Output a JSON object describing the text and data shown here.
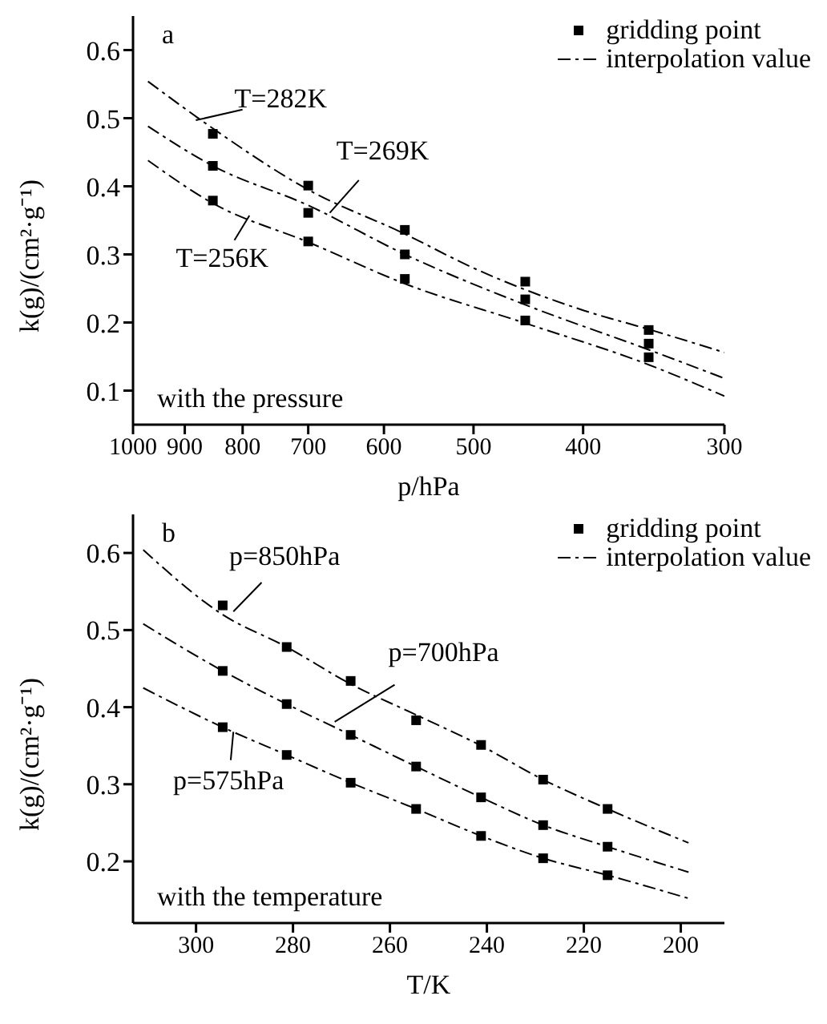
{
  "chart_data": [
    {
      "type": "line",
      "title": "a",
      "xlabel": "p/hPa",
      "ylabel": "k(g)/(cm²·g⁻¹)",
      "log": "x",
      "xlim": [
        1000,
        300
      ],
      "xticks": [
        1000,
        900,
        800,
        700,
        600,
        500,
        400,
        300
      ],
      "ylim": [
        0.05,
        0.65
      ],
      "yticks": [
        0.1,
        0.2,
        0.3,
        0.4,
        0.5,
        0.6
      ],
      "legend": "top right",
      "grid": false,
      "annotations": [
        {
          "text": "T=282K",
          "x": 880,
          "y": 0.497
        },
        {
          "text": "T=269K",
          "x": 670,
          "y": 0.361
        },
        {
          "text": "T=256K",
          "x": 789,
          "y": 0.357
        },
        "with the pressure"
      ],
      "series": [
        {
          "name": "gridding point",
          "type": "scatter",
          "marker": "square",
          "color": "#000000",
          "x": [
            850,
            850,
            850,
            700,
            700,
            700,
            575,
            575,
            575,
            450,
            450,
            450,
            350,
            350,
            350
          ],
          "values": [
            0.477,
            0.43,
            0.379,
            0.401,
            0.361,
            0.319,
            0.336,
            0.3,
            0.264,
            0.26,
            0.234,
            0.203,
            0.189,
            0.169,
            0.149
          ]
        },
        {
          "name": "interpolation value",
          "type": "line",
          "line_style": "dashed",
          "color": "#000000",
          "x": [
            970,
            850,
            700,
            575,
            500,
            400,
            350,
            300
          ],
          "values": [
            0.554,
            0.485,
            0.395,
            0.33,
            0.28,
            0.218,
            0.19,
            0.156
          ]
        },
        {
          "type": "line",
          "line_style": "dashed",
          "color": "#000000",
          "x": [
            970,
            850,
            700,
            575,
            450,
            350,
            300
          ],
          "values": [
            0.488,
            0.43,
            0.372,
            0.3,
            0.226,
            0.16,
            0.118
          ]
        },
        {
          "type": "line",
          "line_style": "dashed",
          "color": "#000000",
          "x": [
            970,
            850,
            700,
            575,
            450,
            350,
            300
          ],
          "values": [
            0.438,
            0.375,
            0.318,
            0.257,
            0.199,
            0.138,
            0.092
          ]
        }
      ]
    },
    {
      "type": "line",
      "title": "b",
      "xlabel": "T/K",
      "ylabel": "k(g)/(cm²·g⁻¹)",
      "xlim": [
        313,
        191
      ],
      "xticks": [
        300,
        280,
        260,
        240,
        220,
        200
      ],
      "ylim": [
        0.12,
        0.65
      ],
      "yticks": [
        0.2,
        0.3,
        0.4,
        0.5,
        0.6
      ],
      "legend": "top right",
      "grid": false,
      "annotations": [
        {
          "text": "p=850hPa",
          "x": 292.3,
          "y": 0.524
        },
        {
          "text": "p=700hPa",
          "x": 271.4,
          "y": 0.381
        },
        {
          "text": "p=575hPa",
          "x": 292.3,
          "y": 0.368
        },
        "with the temperature"
      ],
      "series": [
        {
          "name": "gridding point",
          "type": "scatter",
          "marker": "square",
          "color": "#000000",
          "x": [
            294.5,
            281.3,
            268.1,
            254.6,
            241.2,
            228.4,
            215.1,
            294.5,
            281.3,
            268.1,
            254.6,
            241.2,
            228.4,
            215.1,
            294.5,
            281.3,
            268.1,
            254.6,
            241.2,
            228.4,
            215.1
          ],
          "values": [
            0.532,
            0.478,
            0.434,
            0.383,
            0.351,
            0.306,
            0.268,
            0.447,
            0.404,
            0.364,
            0.323,
            0.283,
            0.247,
            0.219,
            0.374,
            0.338,
            0.302,
            0.268,
            0.233,
            0.204,
            0.182
          ]
        },
        {
          "name": "interpolation value",
          "type": "line",
          "line_style": "dashed",
          "color": "#000000",
          "x": [
            310.9,
            294.5,
            281.3,
            268.1,
            254.6,
            241.2,
            228.4,
            215.1,
            198.4
          ],
          "values": [
            0.604,
            0.52,
            0.478,
            0.43,
            0.39,
            0.35,
            0.306,
            0.268,
            0.224
          ]
        },
        {
          "type": "line",
          "line_style": "dashed",
          "color": "#000000",
          "x": [
            310.9,
            294.5,
            281.3,
            268.1,
            254.6,
            241.2,
            228.4,
            215.1,
            198.4
          ],
          "values": [
            0.508,
            0.447,
            0.404,
            0.364,
            0.323,
            0.283,
            0.247,
            0.219,
            0.186
          ]
        },
        {
          "type": "line",
          "line_style": "dashed",
          "color": "#000000",
          "x": [
            310.9,
            294.5,
            281.3,
            268.1,
            254.6,
            241.2,
            228.4,
            215.1,
            198.4
          ],
          "values": [
            0.425,
            0.374,
            0.338,
            0.302,
            0.268,
            0.233,
            0.204,
            0.182,
            0.152
          ]
        }
      ]
    }
  ]
}
